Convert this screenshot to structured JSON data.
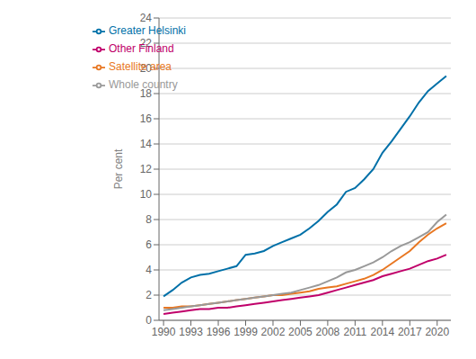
{
  "chart_data": {
    "type": "line",
    "ylabel": "Per cent",
    "x": [
      1990,
      1991,
      1992,
      1993,
      1994,
      1995,
      1996,
      1997,
      1998,
      1999,
      2000,
      2001,
      2002,
      2003,
      2004,
      2005,
      2006,
      2007,
      2008,
      2009,
      2010,
      2011,
      2012,
      2013,
      2014,
      2015,
      2016,
      2017,
      2018,
      2019,
      2020,
      2021
    ],
    "series": [
      {
        "name": "Greater Helsinki",
        "color": "#0070a8",
        "values": [
          1.9,
          2.4,
          3.0,
          3.4,
          3.6,
          3.7,
          3.9,
          4.1,
          4.3,
          5.2,
          5.3,
          5.5,
          5.9,
          6.2,
          6.5,
          6.8,
          7.3,
          7.9,
          8.6,
          9.2,
          10.2,
          10.5,
          11.2,
          12.0,
          13.3,
          14.2,
          15.2,
          16.2,
          17.3,
          18.2,
          18.8,
          19.4
        ]
      },
      {
        "name": "Satellite area",
        "color": "#e87722",
        "values": [
          1.0,
          1.0,
          1.1,
          1.1,
          1.2,
          1.3,
          1.4,
          1.5,
          1.6,
          1.7,
          1.8,
          1.9,
          2.0,
          2.0,
          2.1,
          2.2,
          2.3,
          2.5,
          2.6,
          2.7,
          2.9,
          3.1,
          3.3,
          3.6,
          4.0,
          4.5,
          5.0,
          5.5,
          6.2,
          6.8,
          7.3,
          7.7
        ]
      },
      {
        "name": "Other Finland",
        "color": "#c0006a",
        "values": [
          0.5,
          0.6,
          0.7,
          0.8,
          0.9,
          0.9,
          1.0,
          1.0,
          1.1,
          1.2,
          1.3,
          1.4,
          1.5,
          1.6,
          1.7,
          1.8,
          1.9,
          2.0,
          2.2,
          2.4,
          2.6,
          2.8,
          3.0,
          3.2,
          3.5,
          3.7,
          3.9,
          4.1,
          4.4,
          4.7,
          4.9,
          5.2
        ]
      },
      {
        "name": "Whole country",
        "color": "#999999",
        "values": [
          0.8,
          0.9,
          1.0,
          1.1,
          1.2,
          1.3,
          1.4,
          1.5,
          1.6,
          1.7,
          1.8,
          1.9,
          2.0,
          2.1,
          2.2,
          2.4,
          2.6,
          2.8,
          3.1,
          3.4,
          3.8,
          4.0,
          4.3,
          4.6,
          5.0,
          5.5,
          5.9,
          6.2,
          6.6,
          7.0,
          7.8,
          8.4
        ]
      }
    ],
    "xlim": [
      1989.5,
      2021.5
    ],
    "xticks": [
      1990,
      1993,
      1996,
      1999,
      2002,
      2005,
      2008,
      2011,
      2014,
      2017,
      2020
    ],
    "ylim": [
      0,
      24
    ],
    "yticks": [
      0,
      2,
      4,
      6,
      8,
      10,
      12,
      14,
      16,
      18,
      20,
      22,
      24
    ],
    "grid": "y",
    "legend": "upper left"
  }
}
